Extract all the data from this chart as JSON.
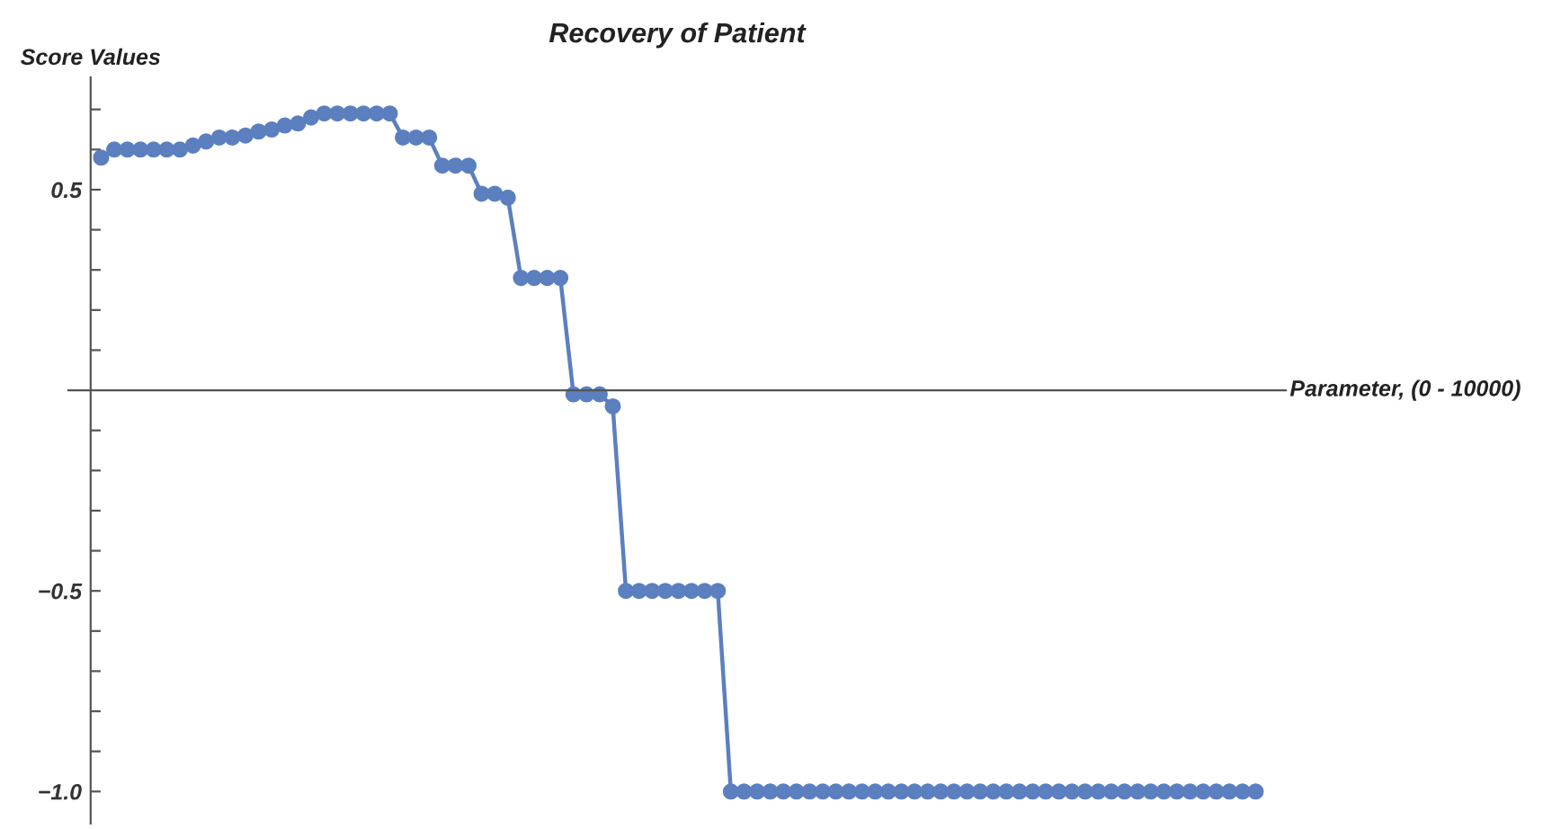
{
  "chart_data": {
    "type": "line",
    "title": "Recovery of Patient",
    "xlabel": "Parameter, (0 - 10000)",
    "ylabel": "Score Values",
    "categories": [
      null,
      null,
      null,
      null,
      null,
      null,
      null,
      null,
      null,
      null,
      null,
      null,
      null,
      null,
      null,
      null,
      null,
      null,
      null,
      null,
      null,
      null,
      null,
      null,
      null,
      null,
      null,
      null,
      null,
      null,
      null,
      null,
      null,
      null,
      null,
      null,
      null,
      null,
      null,
      null,
      null,
      null,
      null,
      null,
      null,
      null,
      null,
      null,
      null,
      null,
      null,
      null,
      null,
      null,
      null,
      null,
      null,
      null,
      null,
      null,
      null,
      null,
      null,
      null,
      null,
      null,
      null,
      null,
      null,
      null,
      null,
      null,
      null,
      null,
      null,
      null,
      null,
      null,
      null,
      null,
      null,
      null,
      null,
      null,
      null,
      null,
      null,
      null,
      null
    ],
    "series": [
      {
        "color": "#5b7fbf",
        "values": [
          0.58,
          0.6,
          0.6,
          0.6,
          0.6,
          0.6,
          0.6,
          0.61,
          0.62,
          0.63,
          0.63,
          0.635,
          0.645,
          0.65,
          0.66,
          0.665,
          0.68,
          0.69,
          0.69,
          0.69,
          0.69,
          0.69,
          0.69,
          0.63,
          0.63,
          0.63,
          0.56,
          0.56,
          0.56,
          0.49,
          0.49,
          0.48,
          0.28,
          0.28,
          0.28,
          0.28,
          -0.01,
          -0.01,
          -0.01,
          -0.04,
          -0.5,
          -0.5,
          -0.5,
          -0.5,
          -0.5,
          -0.5,
          -0.5,
          -0.5,
          -1,
          -1,
          -1,
          -1,
          -1,
          -1,
          -1,
          -1,
          -1,
          -1,
          -1,
          -1,
          -1,
          -1,
          -1,
          -1,
          -1,
          -1,
          -1,
          -1,
          -1,
          -1,
          -1,
          -1,
          -1,
          -1,
          -1,
          -1,
          -1,
          -1,
          -1,
          -1,
          -1,
          -1,
          -1,
          -1,
          -1,
          -1,
          -1,
          -1,
          -1
        ]
      }
    ],
    "ylim": [
      -1.08,
      0.78
    ],
    "yticks": [
      {
        "value": -1,
        "label": "−1.0"
      },
      {
        "value": -0.9,
        "label": null
      },
      {
        "value": -0.8,
        "label": null
      },
      {
        "value": -0.7,
        "label": null
      },
      {
        "value": -0.6,
        "label": null
      },
      {
        "value": -0.5,
        "label": "−0.5"
      },
      {
        "value": -0.4,
        "label": null
      },
      {
        "value": -0.3,
        "label": null
      },
      {
        "value": -0.2,
        "label": null
      },
      {
        "value": -0.1,
        "label": null
      },
      {
        "value": 0.1,
        "label": null
      },
      {
        "value": 0.2,
        "label": null
      },
      {
        "value": 0.3,
        "label": null
      },
      {
        "value": 0.4,
        "label": null
      },
      {
        "value": 0.5,
        "label": "0.5"
      },
      {
        "value": 0.6,
        "label": null
      },
      {
        "value": 0.7,
        "label": null
      }
    ],
    "marker": "circle",
    "line_style": "solid",
    "grid": false,
    "legend": false
  }
}
